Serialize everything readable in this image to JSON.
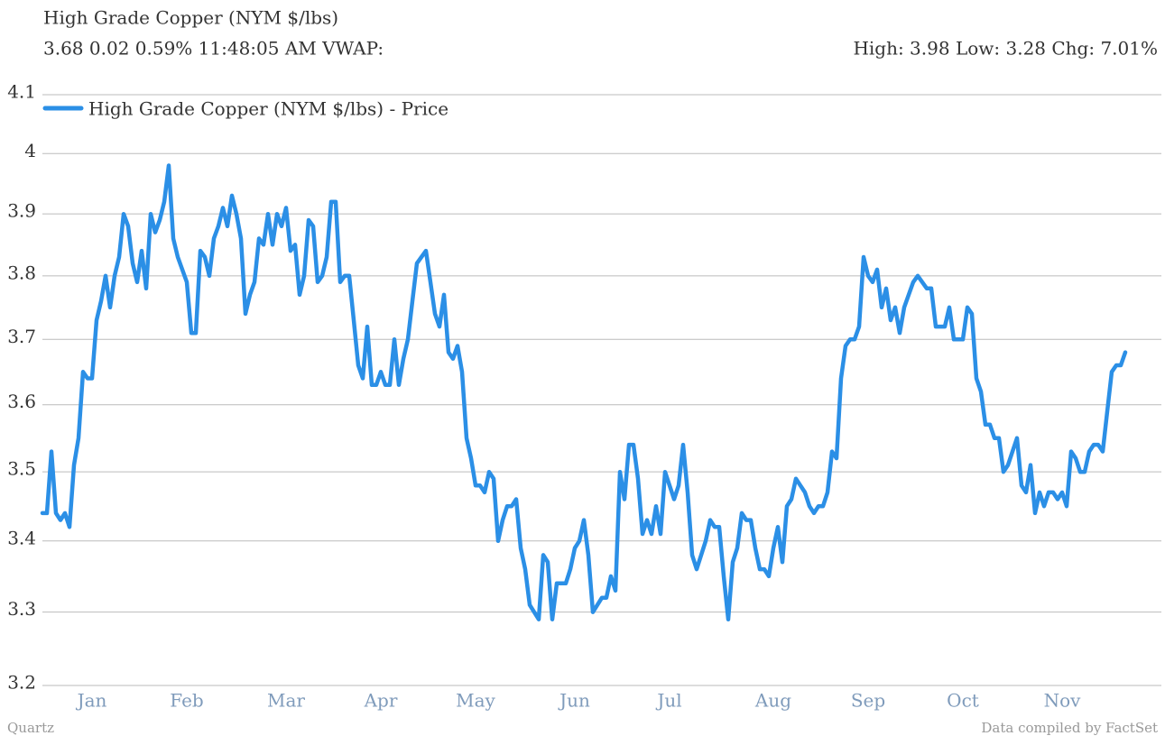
{
  "chart_data": {
    "type": "line",
    "title": "High Grade Copper (NYM $/lbs)",
    "subtitle": "3.68 0.02 0.59% 11:48:05 AM VWAP:",
    "stats": "High: 3.98 Low: 3.28 Chg: 7.01%",
    "source_left": "Quartz",
    "source_right": "Data compiled by FactSet",
    "log_y": true,
    "grid": true,
    "legend": "top-left",
    "xlim": [
      0,
      240
    ],
    "xticks": [
      {
        "value": 11,
        "label": "Jan"
      },
      {
        "value": 32,
        "label": "Feb"
      },
      {
        "value": 54,
        "label": "Mar"
      },
      {
        "value": 75,
        "label": "Apr"
      },
      {
        "value": 96,
        "label": "May"
      },
      {
        "value": 118,
        "label": "Jun"
      },
      {
        "value": 139,
        "label": "Jul"
      },
      {
        "value": 162,
        "label": "Aug"
      },
      {
        "value": 183,
        "label": "Sep"
      },
      {
        "value": 204,
        "label": "Oct"
      },
      {
        "value": 226,
        "label": "Nov"
      }
    ],
    "ylim": [
      3.2,
      4.1
    ],
    "yticks": [
      3.2,
      3.3,
      3.4,
      3.5,
      3.6,
      3.7,
      3.8,
      3.9,
      4,
      4.1
    ],
    "series": [
      {
        "name": "High Grade Copper (NYM $/lbs) - Price",
        "color": "#2b8fe6",
        "values": [
          3.44,
          3.44,
          3.53,
          3.44,
          3.43,
          3.44,
          3.42,
          3.51,
          3.55,
          3.65,
          3.64,
          3.64,
          3.73,
          3.76,
          3.8,
          3.75,
          3.8,
          3.83,
          3.9,
          3.88,
          3.82,
          3.79,
          3.84,
          3.78,
          3.9,
          3.87,
          3.89,
          3.92,
          3.98,
          3.86,
          3.83,
          3.81,
          3.79,
          3.71,
          3.71,
          3.84,
          3.83,
          3.8,
          3.86,
          3.88,
          3.91,
          3.88,
          3.93,
          3.9,
          3.86,
          3.74,
          3.77,
          3.79,
          3.86,
          3.85,
          3.9,
          3.85,
          3.9,
          3.88,
          3.91,
          3.84,
          3.85,
          3.77,
          3.8,
          3.89,
          3.88,
          3.79,
          3.8,
          3.83,
          3.92,
          3.92,
          3.79,
          3.8,
          3.8,
          3.73,
          3.66,
          3.64,
          3.72,
          3.63,
          3.63,
          3.65,
          3.63,
          3.63,
          3.7,
          3.63,
          3.67,
          3.7,
          3.76,
          3.82,
          3.83,
          3.84,
          3.79,
          3.74,
          3.72,
          3.77,
          3.68,
          3.67,
          3.69,
          3.65,
          3.55,
          3.52,
          3.48,
          3.48,
          3.47,
          3.5,
          3.49,
          3.4,
          3.43,
          3.45,
          3.45,
          3.46,
          3.39,
          3.36,
          3.31,
          3.3,
          3.29,
          3.38,
          3.37,
          3.29,
          3.34,
          3.34,
          3.34,
          3.36,
          3.39,
          3.4,
          3.43,
          3.38,
          3.3,
          3.31,
          3.32,
          3.32,
          3.35,
          3.33,
          3.5,
          3.46,
          3.54,
          3.54,
          3.49,
          3.41,
          3.43,
          3.41,
          3.45,
          3.41,
          3.5,
          3.48,
          3.46,
          3.48,
          3.54,
          3.47,
          3.38,
          3.36,
          3.38,
          3.4,
          3.43,
          3.42,
          3.42,
          3.35,
          3.29,
          3.37,
          3.39,
          3.44,
          3.43,
          3.43,
          3.39,
          3.36,
          3.36,
          3.35,
          3.39,
          3.42,
          3.37,
          3.45,
          3.46,
          3.49,
          3.48,
          3.47,
          3.45,
          3.44,
          3.45,
          3.45,
          3.47,
          3.53,
          3.52,
          3.64,
          3.69,
          3.7,
          3.7,
          3.72,
          3.83,
          3.8,
          3.79,
          3.81,
          3.75,
          3.78,
          3.73,
          3.75,
          3.71,
          3.75,
          3.77,
          3.79,
          3.8,
          3.79,
          3.78,
          3.78,
          3.72,
          3.72,
          3.72,
          3.75,
          3.7,
          3.7,
          3.7,
          3.75,
          3.74,
          3.64,
          3.62,
          3.57,
          3.57,
          3.55,
          3.55,
          3.5,
          3.51,
          3.53,
          3.55,
          3.48,
          3.47,
          3.51,
          3.44,
          3.47,
          3.45,
          3.47,
          3.47,
          3.46,
          3.47,
          3.45,
          3.53,
          3.52,
          3.5,
          3.5,
          3.53,
          3.54,
          3.54,
          3.53,
          3.59,
          3.65,
          3.66,
          3.66,
          3.68
        ]
      }
    ]
  }
}
